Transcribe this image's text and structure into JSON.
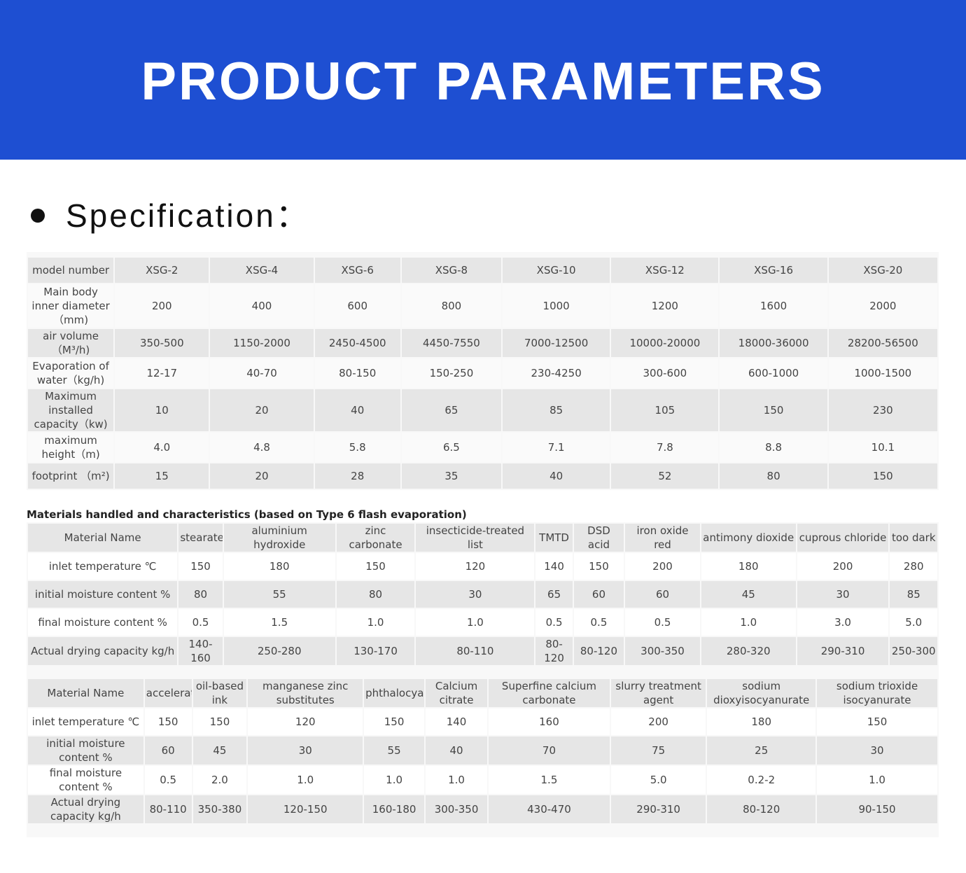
{
  "header": {
    "title": "PRODUCT PARAMETERS"
  },
  "section_title": "Specification：",
  "spec_table": {
    "rows": [
      [
        "model number",
        "XSG-2",
        "XSG-4",
        "XSG-6",
        "XSG-8",
        "XSG-10",
        "XSG-12",
        "XSG-16",
        "XSG-20"
      ],
      [
        "Main body inner diameter（mm)",
        "200",
        "400",
        "600",
        "800",
        "1000",
        "1200",
        "1600",
        "2000"
      ],
      [
        "air volume（M³/h)",
        "350-500",
        "1150-2000",
        "2450-4500",
        "4450-7550",
        "7000-12500",
        "10000-20000",
        "18000-36000",
        "28200-56500"
      ],
      [
        "Evaporation of water（kg/h)",
        "12-17",
        "40-70",
        "80-150",
        "150-250",
        "230-4250",
        "300-600",
        "600-1000",
        "1000-1500"
      ],
      [
        "Maximum installed capacity（kw)",
        "10",
        "20",
        "40",
        "65",
        "85",
        "105",
        "150",
        "230"
      ],
      [
        "maximum height（m)",
        "4.0",
        "4.8",
        "5.8",
        "6.5",
        "7.1",
        "7.8",
        "8.8",
        "10.1"
      ],
      [
        "footprint （m²)",
        "15",
        "20",
        "28",
        "35",
        "40",
        "52",
        "80",
        "150"
      ]
    ]
  },
  "materials_caption": "Materials handled and characteristics (based on Type 6 flash evaporation)",
  "materials_table_1": {
    "rows": [
      [
        "Material Name",
        "stearate",
        "aluminium hydroxide",
        "zinc carbonate",
        "insecticide-treated list",
        "TMTD",
        "DSD acid",
        "iron oxide red",
        "antimony dioxide",
        "cuprous chloride",
        "too dark"
      ],
      [
        "inlet temperature ℃",
        "150",
        "180",
        "150",
        "120",
        "140",
        "150",
        "200",
        "180",
        "200",
        "280"
      ],
      [
        "initial moisture content %",
        "80",
        "55",
        "80",
        "30",
        "65",
        "60",
        "60",
        "45",
        "30",
        "85"
      ],
      [
        "final moisture content %",
        "0.5",
        "1.5",
        "1.0",
        "1.0",
        "0.5",
        "0.5",
        "0.5",
        "1.0",
        "3.0",
        "5.0"
      ],
      [
        "Actual drying capacity kg/h",
        "140-160",
        "250-280",
        "130-170",
        "80-110",
        "80-120",
        "80-120",
        "300-350",
        "280-320",
        "290-310",
        "250-300"
      ]
    ]
  },
  "materials_table_2": {
    "rows": [
      [
        "Material Name",
        "accelerator",
        "oil-based ink",
        "manganese zinc substitutes",
        "phthalocyanin",
        "Calcium citrate",
        "Superfine calcium carbonate",
        "slurry treatment agent",
        "sodium dioxyisocyanurate",
        "sodium trioxide isocyanurate"
      ],
      [
        "inlet temperature ℃",
        "150",
        "150",
        "120",
        "150",
        "140",
        "160",
        "200",
        "180",
        "150"
      ],
      [
        "initial moisture content %",
        "60",
        "45",
        "30",
        "55",
        "40",
        "70",
        "75",
        "25",
        "30"
      ],
      [
        "final moisture content %",
        "0.5",
        "2.0",
        "1.0",
        "1.0",
        "1.0",
        "1.5",
        "5.0",
        "0.2-2",
        "1.0"
      ],
      [
        "Actual drying capacity kg/h",
        "80-110",
        "350-380",
        "120-150",
        "160-180",
        "300-350",
        "430-470",
        "290-310",
        "80-120",
        "90-150"
      ]
    ]
  }
}
